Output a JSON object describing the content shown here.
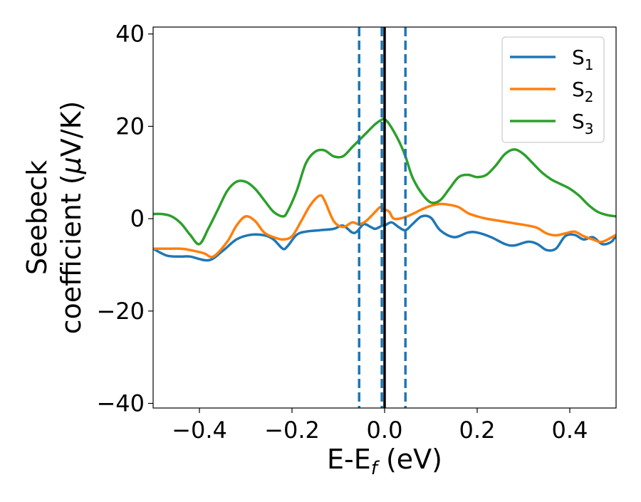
{
  "chart_data": {
    "type": "line",
    "xlabel": {
      "main": "E-E",
      "sub": "f",
      "tail": " (eV)"
    },
    "ylabel": {
      "line1": "Seebeck",
      "line2_prefix": "coefficient  (",
      "mu": "μ",
      "line2_suffix": "V/K)"
    },
    "xlim": [
      -0.5,
      0.5
    ],
    "ylim": [
      -41,
      41.5
    ],
    "x_ticks": [
      -0.4,
      -0.2,
      0.0,
      0.2,
      0.4
    ],
    "x_tick_labels": [
      "−0.4",
      "−0.2",
      "0.0",
      "0.2",
      "0.4"
    ],
    "y_ticks": [
      -40,
      -20,
      0,
      20,
      40
    ],
    "y_tick_labels": [
      "−40",
      "−20",
      "0",
      "20",
      "40"
    ],
    "grid": false,
    "legend_position": "top-right",
    "vlines": [
      {
        "x": -0.055,
        "style": "dashed",
        "color": "#1f77b4"
      },
      {
        "x": -0.006,
        "style": "dashed",
        "color": "#1f77b4"
      },
      {
        "x": 0.0,
        "style": "solid",
        "color": "#000000"
      },
      {
        "x": 0.045,
        "style": "dashed",
        "color": "#1f77b4"
      }
    ],
    "series": [
      {
        "name": "S1",
        "name_main": "S",
        "name_sub": "1",
        "color": "#1f77b4",
        "x": [
          -0.5,
          -0.47,
          -0.44,
          -0.42,
          -0.38,
          -0.35,
          -0.32,
          -0.29,
          -0.26,
          -0.24,
          -0.22,
          -0.21,
          -0.19,
          -0.17,
          -0.14,
          -0.11,
          -0.09,
          -0.07,
          -0.06,
          -0.045,
          -0.03,
          -0.02,
          -0.005,
          0.0,
          0.015,
          0.03,
          0.045,
          0.06,
          0.08,
          0.1,
          0.12,
          0.15,
          0.18,
          0.2,
          0.23,
          0.26,
          0.28,
          0.31,
          0.33,
          0.35,
          0.37,
          0.39,
          0.41,
          0.43,
          0.45,
          0.47,
          0.49,
          0.5
        ],
        "values": [
          -6.5,
          -8,
          -8.2,
          -8.2,
          -9,
          -7,
          -4.5,
          -3.5,
          -3.6,
          -4.5,
          -6.5,
          -6,
          -3.5,
          -2.8,
          -2.5,
          -2.2,
          -1.5,
          -3,
          -2.8,
          -1.2,
          -1.8,
          -2.2,
          -1.5,
          -1.5,
          -0.8,
          -1.8,
          -2.5,
          -1.2,
          0.5,
          0.2,
          -2.5,
          -4,
          -3,
          -3,
          -4,
          -5.5,
          -5.8,
          -5,
          -5.5,
          -6.8,
          -6.5,
          -3.8,
          -3.5,
          -4.5,
          -4,
          -5.5,
          -5,
          -3.5
        ]
      },
      {
        "name": "S2",
        "name_main": "S",
        "name_sub": "2",
        "color": "#ff7f0e",
        "x": [
          -0.5,
          -0.47,
          -0.44,
          -0.42,
          -0.39,
          -0.37,
          -0.34,
          -0.32,
          -0.3,
          -0.28,
          -0.26,
          -0.24,
          -0.22,
          -0.2,
          -0.18,
          -0.16,
          -0.14,
          -0.13,
          -0.11,
          -0.09,
          -0.07,
          -0.055,
          -0.04,
          -0.02,
          -0.01,
          -0.005,
          0.0,
          0.01,
          0.02,
          0.04,
          0.06,
          0.08,
          0.1,
          0.12,
          0.14,
          0.16,
          0.18,
          0.2,
          0.22,
          0.25,
          0.28,
          0.31,
          0.33,
          0.35,
          0.37,
          0.39,
          0.41,
          0.43,
          0.45,
          0.47,
          0.5
        ],
        "values": [
          -6.5,
          -6.5,
          -6.5,
          -6.8,
          -7.5,
          -8.2,
          -5,
          -1.5,
          0.5,
          -0.5,
          -3,
          -4,
          -4.5,
          -3.8,
          -0.5,
          3,
          5,
          4,
          -0.5,
          -1.8,
          -0.8,
          -1.2,
          -0.5,
          1.5,
          2.5,
          2.2,
          2,
          1.5,
          0,
          0.2,
          1,
          2,
          2.8,
          3.2,
          3,
          2.5,
          1.2,
          0.5,
          0,
          -0.5,
          -1,
          -1.5,
          -2,
          -3.2,
          -3.6,
          -3.2,
          -2.8,
          -3.8,
          -4.5,
          -5,
          -3.5
        ]
      },
      {
        "name": "S3",
        "name_main": "S",
        "name_sub": "3",
        "color": "#2ca02c",
        "x": [
          -0.5,
          -0.48,
          -0.46,
          -0.44,
          -0.42,
          -0.4,
          -0.38,
          -0.36,
          -0.34,
          -0.32,
          -0.3,
          -0.28,
          -0.26,
          -0.24,
          -0.22,
          -0.21,
          -0.19,
          -0.17,
          -0.15,
          -0.13,
          -0.11,
          -0.09,
          -0.07,
          -0.055,
          -0.04,
          -0.02,
          -0.005,
          0.0,
          0.01,
          0.03,
          0.045,
          0.06,
          0.08,
          0.1,
          0.12,
          0.14,
          0.16,
          0.18,
          0.2,
          0.22,
          0.24,
          0.26,
          0.28,
          0.3,
          0.32,
          0.34,
          0.36,
          0.38,
          0.4,
          0.42,
          0.44,
          0.46,
          0.48,
          0.5
        ],
        "values": [
          1,
          1,
          0.5,
          -1,
          -3.5,
          -5.5,
          -2,
          2,
          6,
          8,
          8,
          6.5,
          4,
          1.5,
          0.5,
          1.5,
          6,
          12,
          14.5,
          14.8,
          13.5,
          13.5,
          15.5,
          17,
          18.5,
          20.5,
          21.5,
          21.5,
          20.5,
          17,
          13.5,
          9,
          5.5,
          3.5,
          4,
          6.5,
          9,
          9.5,
          9,
          9.5,
          11.5,
          14,
          15,
          14,
          12,
          10,
          8.5,
          7.5,
          6.5,
          5,
          3,
          1.5,
          0.8,
          0.5
        ]
      }
    ]
  }
}
